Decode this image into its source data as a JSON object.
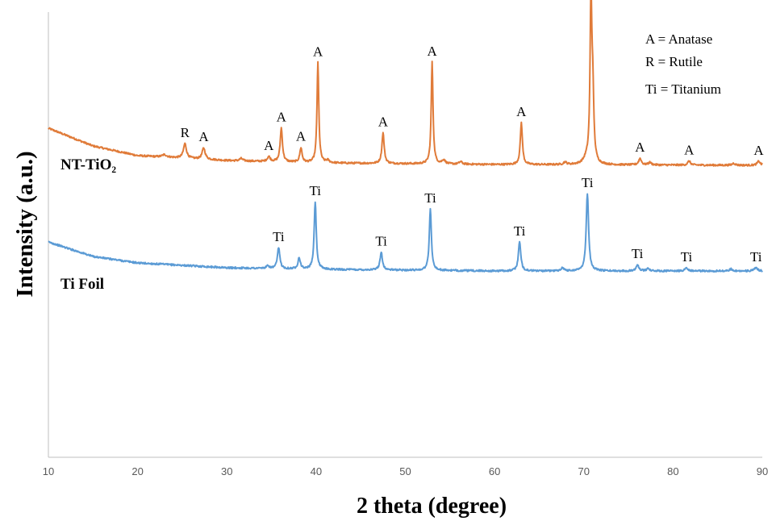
{
  "chart_data": {
    "type": "line",
    "xlabel": "2 theta (degree)",
    "ylabel": "Intensity (a.u.)",
    "xlim": [
      10,
      90
    ],
    "xticks": [
      10,
      20,
      30,
      40,
      50,
      60,
      70,
      80,
      90
    ],
    "grid": false,
    "legend": {
      "placement": "top-right",
      "entries": [
        "A = Anatase",
        "R = Rutile",
        "Ti = Titanium"
      ]
    },
    "series": [
      {
        "name": "NT-TiO₂",
        "color": "#E07B39",
        "baseline": [
          [
            10,
            35
          ],
          [
            15,
            24
          ],
          [
            20,
            18
          ],
          [
            30,
            15
          ],
          [
            40,
            13.5
          ],
          [
            60,
            12.5
          ],
          [
            90,
            12
          ]
        ],
        "peaks": [
          {
            "x": 23.0,
            "height": 1.5,
            "width": 0.3
          },
          {
            "x": 25.3,
            "height": 9,
            "width": 0.2,
            "label": "R"
          },
          {
            "x": 27.4,
            "height": 7,
            "width": 0.2,
            "label": "A"
          },
          {
            "x": 31.6,
            "height": 1.5,
            "width": 0.2
          },
          {
            "x": 34.7,
            "height": 3,
            "width": 0.2,
            "label": "A"
          },
          {
            "x": 36.1,
            "height": 21,
            "width": 0.15,
            "label": "A"
          },
          {
            "x": 38.3,
            "height": 9,
            "width": 0.15,
            "label": "A"
          },
          {
            "x": 40.2,
            "height": 62,
            "width": 0.12,
            "label": "A"
          },
          {
            "x": 41.3,
            "height": 1.5,
            "width": 0.2
          },
          {
            "x": 47.5,
            "height": 19,
            "width": 0.15,
            "label": "A"
          },
          {
            "x": 53.0,
            "height": 63,
            "width": 0.12,
            "label": "A"
          },
          {
            "x": 54.3,
            "height": 2.5,
            "width": 0.2
          },
          {
            "x": 56.2,
            "height": 1.5,
            "width": 0.2
          },
          {
            "x": 63.0,
            "height": 26,
            "width": 0.14,
            "label": "A"
          },
          {
            "x": 67.9,
            "height": 1.5,
            "width": 0.2
          },
          {
            "x": 70.3,
            "height": 3,
            "width": 0.4
          },
          {
            "x": 70.8,
            "height": 98,
            "width": 0.12,
            "label": "A"
          },
          {
            "x": 71.0,
            "height": 40,
            "width": 0.14
          },
          {
            "x": 76.3,
            "height": 4,
            "width": 0.18,
            "label": "A"
          },
          {
            "x": 77.4,
            "height": 1.5,
            "width": 0.2
          },
          {
            "x": 81.8,
            "height": 2.5,
            "width": 0.18,
            "label": "A"
          },
          {
            "x": 86.8,
            "height": 1.2,
            "width": 0.2
          },
          {
            "x": 89.6,
            "height": 2.5,
            "width": 0.2,
            "label": "A"
          }
        ]
      },
      {
        "name": "Ti Foil",
        "color": "#5B9BD5",
        "baseline": [
          [
            10,
            43
          ],
          [
            15,
            34
          ],
          [
            20,
            30
          ],
          [
            30,
            27
          ],
          [
            40,
            26
          ],
          [
            60,
            25
          ],
          [
            90,
            25
          ]
        ],
        "peaks": [
          {
            "x": 34.6,
            "height": 1.5,
            "width": 0.2
          },
          {
            "x": 35.8,
            "height": 13,
            "width": 0.16,
            "label": "Ti"
          },
          {
            "x": 38.1,
            "height": 7,
            "width": 0.16
          },
          {
            "x": 39.9,
            "height": 42,
            "width": 0.14,
            "label": "Ti"
          },
          {
            "x": 47.3,
            "height": 11,
            "width": 0.16,
            "label": "Ti"
          },
          {
            "x": 52.8,
            "height": 38,
            "width": 0.14,
            "label": "Ti"
          },
          {
            "x": 62.8,
            "height": 18,
            "width": 0.16,
            "label": "Ti"
          },
          {
            "x": 67.6,
            "height": 2,
            "width": 0.2
          },
          {
            "x": 70.4,
            "height": 48,
            "width": 0.16,
            "label": "Ti"
          },
          {
            "x": 76.0,
            "height": 4,
            "width": 0.18,
            "label": "Ti"
          },
          {
            "x": 77.2,
            "height": 1.5,
            "width": 0.2
          },
          {
            "x": 81.5,
            "height": 2,
            "width": 0.2,
            "label": "Ti"
          },
          {
            "x": 86.5,
            "height": 1.2,
            "width": 0.2
          },
          {
            "x": 89.3,
            "height": 2,
            "width": 0.2,
            "label": "Ti"
          }
        ]
      }
    ]
  }
}
